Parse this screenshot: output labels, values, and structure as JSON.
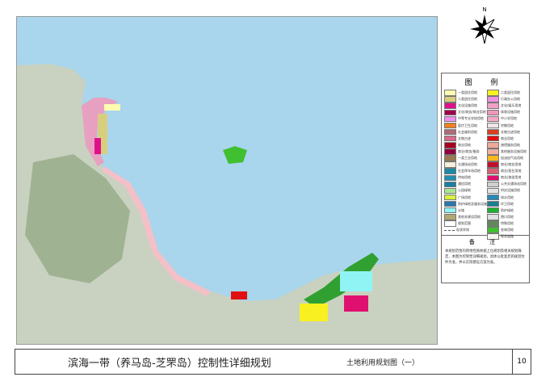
{
  "north": {
    "label": "N"
  },
  "legend": {
    "title": "图 例",
    "left": [
      {
        "label": "一类居住用地",
        "color": "#fefcb0"
      },
      {
        "label": "二类居住用地",
        "color": "#d8cf7e"
      },
      {
        "label": "文化设施用地",
        "color": "#e0108c"
      },
      {
        "label": "文化/商务/商业用地",
        "color": "#a0004a"
      },
      {
        "label": "中等专业学校用地",
        "color": "#f28ef0"
      },
      {
        "label": "医疗卫生用地",
        "color": "#f08020"
      },
      {
        "label": "社会福利用地",
        "color": "#b06a78"
      },
      {
        "label": "文物古迹",
        "color": "#d86a8a"
      },
      {
        "label": "商业用地",
        "color": "#a8001e"
      },
      {
        "label": "商业/商务/服务",
        "color": "#900040"
      },
      {
        "label": "一类工业用地",
        "color": "#9a7a50"
      },
      {
        "label": "交通场站用地",
        "color": "#f4f0dc"
      },
      {
        "label": "社会停车场用地",
        "color": "#1a8aa8"
      },
      {
        "label": "供电用地",
        "color": "#2290b0"
      },
      {
        "label": "通信用地",
        "color": "#1880a0"
      },
      {
        "label": "公园绿地",
        "color": "#a8e890"
      },
      {
        "label": "广场用地",
        "color": "#d8f040"
      },
      {
        "label": "防护绿地及服务设施",
        "color": "#2878b0"
      },
      {
        "label": "水域",
        "color": "#90f4f4"
      },
      {
        "label": "其他非建设用地",
        "color": "#b0a870"
      },
      {
        "label": "规划范围",
        "color": "#ffffff"
      },
      {
        "label": "现状岸线",
        "color": "#ffffff",
        "dashed": true
      }
    ],
    "right": [
      {
        "label": "二类居住用地",
        "color": "#f8f020"
      },
      {
        "label": "行政办公用地",
        "color": "#f090e0"
      },
      {
        "label": "文化/娱乐用地",
        "color": "#f0a0c8"
      },
      {
        "label": "体育设施用地",
        "color": "#f098b8"
      },
      {
        "label": "中小学用地",
        "color": "#f4a8c8"
      },
      {
        "label": "宗教用地",
        "color": "#f0e4e8"
      },
      {
        "label": "文物古迹用地",
        "color": "#d84020"
      },
      {
        "label": "商业用地",
        "color": "#e01010"
      },
      {
        "label": "旅馆服务用地",
        "color": "#f0a898"
      },
      {
        "label": "其他服务设施用地",
        "color": "#f0b0a0"
      },
      {
        "label": "加油加气站用地",
        "color": "#f8b820"
      },
      {
        "label": "商业/商务用地",
        "color": "#c01030"
      },
      {
        "label": "商业/居住用地",
        "color": "#d86070"
      },
      {
        "label": "商业/旅游用地",
        "color": "#e01070"
      },
      {
        "label": "公共交通场站用地",
        "color": "#d0d0d0"
      },
      {
        "label": "供应设施用地",
        "color": "#e4e4e4"
      },
      {
        "label": "排水用地",
        "color": "#2888b8"
      },
      {
        "label": "环卫用地",
        "color": "#188090"
      },
      {
        "label": "防护绿地",
        "color": "#20b030"
      },
      {
        "label": "港口用地",
        "color": "#e0e0e0"
      },
      {
        "label": "特殊用地",
        "color": "#608858"
      },
      {
        "label": "农林用地",
        "color": "#40c030"
      },
      {
        "label": "现状道路",
        "color": "#f4f4f0"
      }
    ]
  },
  "notes": {
    "title": "备 注",
    "text": "本规划范围内用地性质依据上位规划及相关规划确定，本图为控制性详细规划，具体以批复后的规划文件为准，并以实际建设方案为准。"
  },
  "titlebar": {
    "title": "滨海一带（养马岛-芝罘岛）控制性详细规划",
    "subtitle": "土地利用规划图（一）",
    "page": "10"
  },
  "colors": {
    "sea": "#a9d5ed",
    "land": "#c9d2c0"
  }
}
